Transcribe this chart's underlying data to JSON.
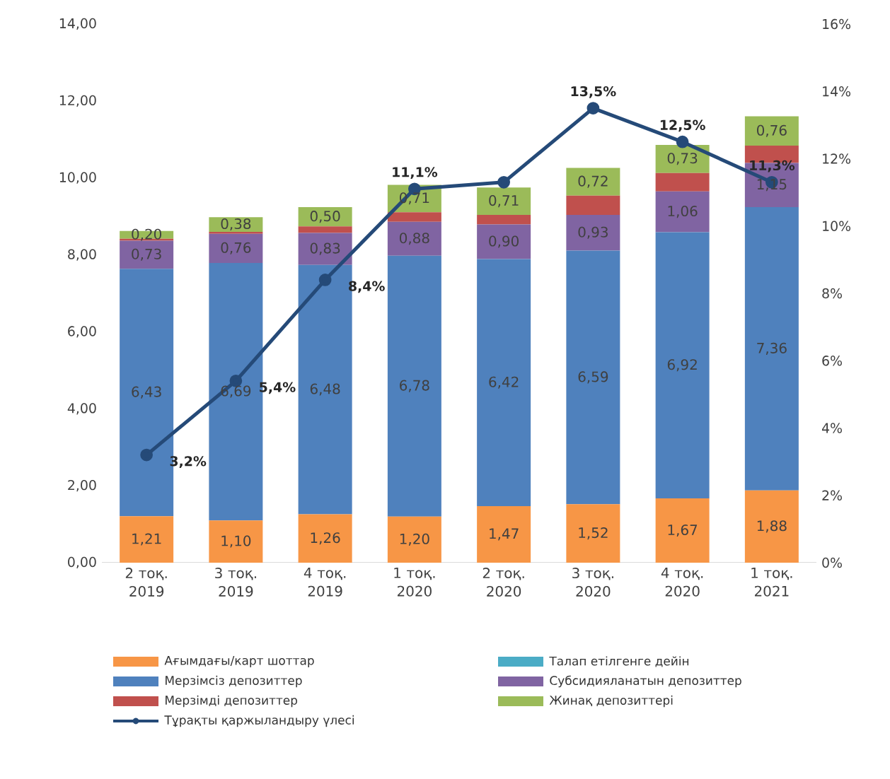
{
  "chart_data": {
    "type": "bar",
    "stacked": true,
    "categories": [
      "2 тоқ. 2019",
      "3 тоқ. 2019",
      "4 тоқ. 2019",
      "1 тоқ. 2020",
      "2 тоқ. 2020",
      "3 тоқ. 2020",
      "4 тоқ. 2020",
      "1 тоқ. 2021"
    ],
    "series": [
      {
        "name": "Ағымдағы/карт шоттар",
        "color": "#f79646",
        "values": [
          1.21,
          1.1,
          1.26,
          1.2,
          1.47,
          1.52,
          1.67,
          1.88
        ],
        "value_labels": [
          "1,21",
          "1,10",
          "1,26",
          "1,20",
          "1,47",
          "1,52",
          "1,67",
          "1,88"
        ]
      },
      {
        "name": "Талап етілгенге дейін",
        "color": "#4bacc6",
        "values": [
          0,
          0,
          0,
          0,
          0,
          0,
          0,
          0
        ]
      },
      {
        "name": "Мерзімсіз депозиттер",
        "color": "#4f81bd",
        "values": [
          6.43,
          6.69,
          6.48,
          6.78,
          6.42,
          6.59,
          6.92,
          7.36
        ],
        "value_labels": [
          "6,43",
          "6,69",
          "6,48",
          "6,78",
          "6,42",
          "6,59",
          "6,92",
          "7,36"
        ]
      },
      {
        "name": "Субсидияланатын депозиттер",
        "color": "#8064a2",
        "values": [
          0.73,
          0.76,
          0.83,
          0.88,
          0.9,
          0.93,
          1.06,
          1.15
        ],
        "value_labels": [
          "0,73",
          "0,76",
          "0,83",
          "0,88",
          "0,90",
          "0,93",
          "1,06",
          "1,15"
        ]
      },
      {
        "name": "Мерзімді депозиттер",
        "color": "#c0504d",
        "values": [
          0.05,
          0.05,
          0.17,
          0.25,
          0.25,
          0.5,
          0.48,
          0.45
        ]
      },
      {
        "name": "Жинақ депозиттері",
        "color": "#9bbb59",
        "values": [
          0.2,
          0.38,
          0.5,
          0.71,
          0.71,
          0.72,
          0.73,
          0.76
        ],
        "value_labels": [
          "0,20",
          "0,38",
          "0,50",
          "0,71",
          "0,71",
          "0,72",
          "0,73",
          "0,76"
        ]
      },
      {
        "name": "Тұрақты қаржыландыру үлесі",
        "type": "line",
        "axis": "y2",
        "color": "#254a78",
        "marker": "circle",
        "values": [
          3.2,
          5.4,
          8.4,
          11.1,
          11.3,
          13.5,
          12.5,
          11.3
        ],
        "value_labels": [
          "3,2%",
          "5,4%",
          "8,4%",
          "11,1%",
          null,
          "13,5%",
          "12,5%",
          "11,3%"
        ]
      }
    ],
    "ylim": [
      0,
      14
    ],
    "yticks": [
      {
        "value": 0,
        "label": "0,00"
      },
      {
        "value": 2,
        "label": "2,00"
      },
      {
        "value": 4,
        "label": "4,00"
      },
      {
        "value": 6,
        "label": "6,00"
      },
      {
        "value": 8,
        "label": "8,00"
      },
      {
        "value": 10,
        "label": "10,00"
      },
      {
        "value": 12,
        "label": "12,00"
      },
      {
        "value": 14,
        "label": "14,00"
      }
    ],
    "y2lim": [
      0,
      16
    ],
    "y2ticks": [
      {
        "value": 0,
        "label": "0%"
      },
      {
        "value": 2,
        "label": "2%"
      },
      {
        "value": 4,
        "label": "4%"
      },
      {
        "value": 6,
        "label": "6%"
      },
      {
        "value": 8,
        "label": "8%"
      },
      {
        "value": 10,
        "label": "10%"
      },
      {
        "value": 12,
        "label": "12%"
      },
      {
        "value": 14,
        "label": "14%"
      },
      {
        "value": 16,
        "label": "16%"
      }
    ],
    "legend": "bottom"
  }
}
